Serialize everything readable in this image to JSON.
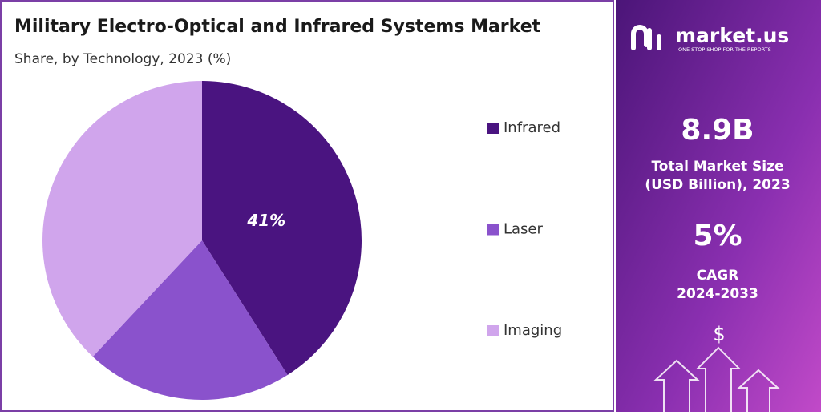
{
  "chart_data": {
    "type": "pie",
    "title": "Military Electro-Optical and Infrared Systems Market",
    "subtitle": "Share, by Technology, 2023 (%)",
    "categories": [
      "Infrared",
      "Laser",
      "Imaging"
    ],
    "values": [
      41,
      21,
      38
    ],
    "value_labels": [
      "41%",
      null,
      null
    ],
    "colors": [
      "#4a1480",
      "#8a52cc",
      "#d0a5ec"
    ],
    "legend": "right"
  },
  "side_panel": {
    "brand": "market.us",
    "tagline": "ONE STOP SHOP FOR THE REPORTS",
    "market_size": "8.9B",
    "market_size_label_1": "Total Market Size",
    "market_size_label_2": "(USD Billion), 2023",
    "cagr": "5%",
    "cagr_label_1": "CAGR",
    "cagr_label_2": "2024-2033",
    "icon": "$"
  }
}
